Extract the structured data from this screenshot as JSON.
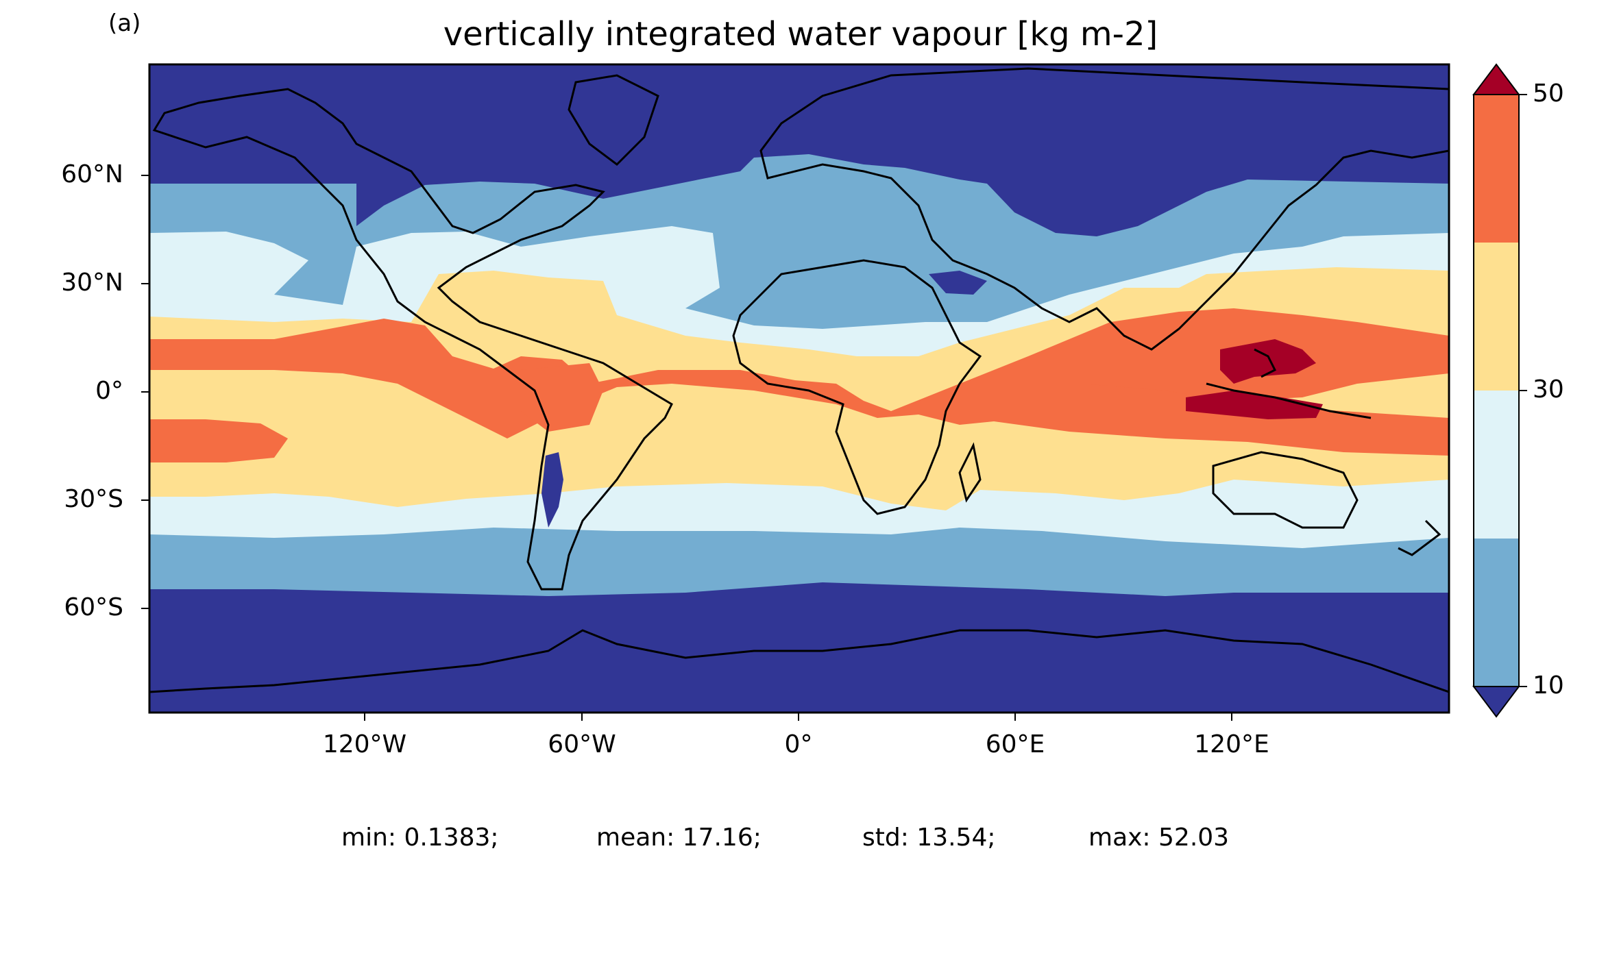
{
  "panel_label": "(a)",
  "title": "vertically integrated water vapour [kg m-2]",
  "lat_ticks": [
    "60°N",
    "30°N",
    "0°",
    "30°S",
    "60°S"
  ],
  "lon_ticks": [
    "120°W",
    "60°W",
    "0°",
    "60°E",
    "120°E"
  ],
  "colorbar": {
    "tick_labels": [
      "50",
      "30",
      "10"
    ],
    "bins": [
      {
        "range": "<10",
        "color": "#313695"
      },
      {
        "range": "10-20",
        "color": "#74add1"
      },
      {
        "range": "20-30",
        "color": "#e0f3f8"
      },
      {
        "range": "30-40",
        "color": "#fee090"
      },
      {
        "range": "40-50",
        "color": "#f46d43"
      },
      {
        "range": ">50",
        "color": "#a50026"
      }
    ],
    "extend": "both"
  },
  "stats": {
    "min": "min: 0.1383;",
    "mean": "mean: 17.16;",
    "std": "std: 13.54;",
    "max": "max: 52.03"
  }
}
